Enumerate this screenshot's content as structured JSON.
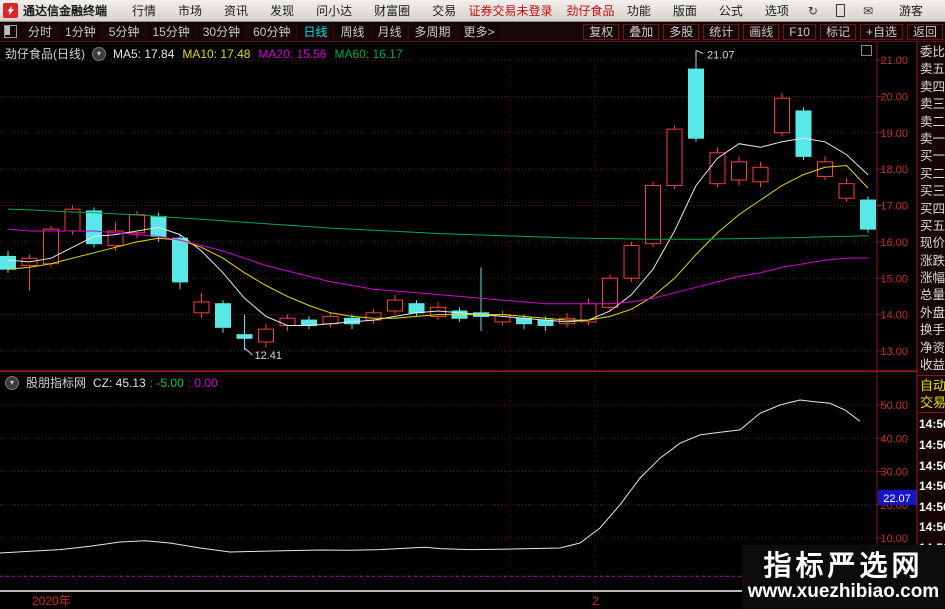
{
  "menubar": {
    "app_title": "通达信金融终端",
    "items": [
      "行情",
      "市场",
      "资讯",
      "发现",
      "问小达",
      "财富圈",
      "交易"
    ],
    "login_status": "证券交易未登录",
    "stock_name": "劲仔食品",
    "right_items": [
      "功能",
      "版面",
      "公式",
      "选项"
    ],
    "icons": [
      "refresh-icon",
      "mobile-icon",
      "mail-icon"
    ],
    "user": "游客"
  },
  "toolbar": {
    "periods": [
      "分时",
      "1分钟",
      "5分钟",
      "15分钟",
      "30分钟",
      "60分钟",
      "日线",
      "周线",
      "月线",
      "多周期",
      "更多>"
    ],
    "active_period": "日线",
    "buttons": [
      "复权",
      "叠加",
      "多股",
      "统计",
      "画线",
      "F10",
      "标记",
      "+自选",
      "返回"
    ]
  },
  "main_chart": {
    "title": "劲仔食品(日线)",
    "ma_labels": [
      {
        "label": "MA5: 17.84",
        "color": "#e8e8e8"
      },
      {
        "label": "MA10: 17.48",
        "color": "#dede00"
      },
      {
        "label": "MA20: 15.56",
        "color": "#d800d8"
      },
      {
        "label": "MA60: 16.17",
        "color": "#00a850"
      }
    ]
  },
  "quote_panel": {
    "rows": [
      "委比",
      "卖五",
      "卖四",
      "卖三",
      "卖二",
      "卖一",
      "买一",
      "买二",
      "买三",
      "买四",
      "买五",
      "现价",
      "涨跌",
      "涨幅",
      "总量",
      "外盘",
      "换手",
      "净资",
      "收益"
    ],
    "auto_trade": [
      "自动",
      "交易"
    ],
    "times": [
      "14:56",
      "14:56",
      "14:56",
      "14:56",
      "14:56",
      "14:56",
      "14:56"
    ]
  },
  "indicator": {
    "name": "股朋指标网",
    "values": [
      {
        "text": "CZ: 45.13",
        "color": "#e0e0e0"
      },
      {
        "text": ": -5.00",
        "color": "#00c850"
      },
      {
        "text": ": 0.00",
        "color": "#d800d8"
      }
    ],
    "marker": "22.07",
    "marker_color": "#1414c8"
  },
  "bottom_axis": {
    "year": "2020年",
    "month": "2"
  },
  "watermark": {
    "line1": "指标严选网",
    "line2": "www.xuezhibiao.com"
  },
  "colors": {
    "up": "#ff3c3c",
    "down": "#58e8e8",
    "grid": "#6e1414",
    "scale_text": "#c83232",
    "divider": "#9e1e1e",
    "baseline": "#cc00cc"
  },
  "chart_data": [
    {
      "type": "candlestick",
      "title": "劲仔食品(日线)",
      "ylim": [
        12.4,
        21.3
      ],
      "yticks": [
        13,
        14,
        15,
        16,
        17,
        18,
        19,
        20,
        21
      ],
      "candles": [
        [
          "d",
          15.75,
          15.6,
          15.25,
          15.15
        ],
        [
          "u",
          15.65,
          15.55,
          15.35,
          14.65
        ],
        [
          "u",
          16.45,
          16.35,
          15.4,
          15.3
        ],
        [
          "u",
          17.0,
          16.9,
          16.3,
          16.2
        ],
        [
          "d",
          16.95,
          16.85,
          15.95,
          15.85
        ],
        [
          "u",
          16.55,
          16.3,
          15.9,
          15.75
        ],
        [
          "u",
          16.85,
          16.75,
          16.25,
          16.1
        ],
        [
          "d",
          16.8,
          16.7,
          16.15,
          16.0
        ],
        [
          "d",
          16.2,
          16.1,
          14.9,
          14.7
        ],
        [
          "u",
          14.6,
          14.35,
          14.05,
          13.9
        ],
        [
          "d",
          14.4,
          14.3,
          13.65,
          13.5
        ],
        [
          "d",
          14.0,
          13.45,
          13.35,
          12.41
        ],
        [
          "u",
          13.75,
          13.6,
          13.25,
          13.1
        ],
        [
          "u",
          14.0,
          13.9,
          13.7,
          13.55
        ],
        [
          "d",
          13.95,
          13.85,
          13.7,
          13.6
        ],
        [
          "u",
          14.05,
          13.95,
          13.75,
          13.65
        ],
        [
          "d",
          14.0,
          13.9,
          13.75,
          13.6
        ],
        [
          "u",
          14.15,
          14.05,
          13.85,
          13.75
        ],
        [
          "u",
          14.55,
          14.4,
          14.1,
          14.0
        ],
        [
          "d",
          14.4,
          14.3,
          14.05,
          13.95
        ],
        [
          "u",
          14.35,
          14.2,
          13.95,
          13.85
        ],
        [
          "d",
          14.2,
          14.1,
          13.9,
          13.8
        ],
        [
          "d",
          15.3,
          14.05,
          13.95,
          13.55
        ],
        [
          "u",
          14.1,
          14.0,
          13.8,
          13.7
        ],
        [
          "d",
          14.0,
          13.9,
          13.75,
          13.6
        ],
        [
          "d",
          13.95,
          13.85,
          13.7,
          13.55
        ],
        [
          "u",
          14.05,
          13.9,
          13.75,
          13.65
        ],
        [
          "u",
          14.45,
          14.3,
          13.8,
          13.7
        ],
        [
          "u",
          15.1,
          15.0,
          14.2,
          14.1
        ],
        [
          "u",
          16.0,
          15.9,
          15.0,
          14.9
        ],
        [
          "u",
          17.65,
          17.55,
          15.95,
          15.85
        ],
        [
          "u",
          19.2,
          19.1,
          17.55,
          17.45
        ],
        [
          "d",
          21.07,
          20.75,
          18.85,
          18.75
        ],
        [
          "u",
          18.6,
          18.45,
          17.6,
          17.5
        ],
        [
          "u",
          18.35,
          18.2,
          17.7,
          17.55
        ],
        [
          "u",
          18.2,
          18.05,
          17.65,
          17.5
        ],
        [
          "u",
          20.1,
          19.95,
          19.0,
          18.9
        ],
        [
          "d",
          19.7,
          19.6,
          18.35,
          18.25
        ],
        [
          "u",
          18.35,
          18.2,
          17.8,
          17.7
        ],
        [
          "u",
          17.75,
          17.6,
          17.2,
          17.1
        ],
        [
          "d",
          17.25,
          17.15,
          16.35,
          16.25
        ]
      ],
      "annotations": [
        {
          "candle": 32,
          "pos": "high",
          "text": "21.07"
        },
        {
          "candle": 11,
          "pos": "low",
          "text": "12.41"
        }
      ],
      "ma_series": [
        {
          "name": "MA5",
          "color": "#e8e8e8",
          "values": [
            15.5,
            15.45,
            15.55,
            15.85,
            16.15,
            16.2,
            16.3,
            16.4,
            16.2,
            15.75,
            15.15,
            14.45,
            13.95,
            13.7,
            13.7,
            13.75,
            13.8,
            13.85,
            13.95,
            14.05,
            14.1,
            14.05,
            14.0,
            13.95,
            13.9,
            13.85,
            13.8,
            13.85,
            14.1,
            14.55,
            15.25,
            16.3,
            17.55,
            18.3,
            18.7,
            18.6,
            18.75,
            18.85,
            18.75,
            18.4,
            17.84
          ]
        },
        {
          "name": "MA10",
          "color": "#dede00",
          "values": [
            15.25,
            15.3,
            15.4,
            15.55,
            15.7,
            15.85,
            16.0,
            16.1,
            16.05,
            15.85,
            15.55,
            15.15,
            14.8,
            14.5,
            14.25,
            14.05,
            13.95,
            13.9,
            13.9,
            13.95,
            14.0,
            14.0,
            14.0,
            14.0,
            13.95,
            13.9,
            13.85,
            13.85,
            13.95,
            14.15,
            14.5,
            15.0,
            15.65,
            16.25,
            16.75,
            17.15,
            17.55,
            17.85,
            18.05,
            18.1,
            17.48
          ]
        },
        {
          "name": "MA20",
          "color": "#d800d8",
          "values": [
            16.35,
            16.3,
            16.3,
            16.3,
            16.3,
            16.25,
            16.2,
            16.15,
            16.05,
            15.9,
            15.75,
            15.55,
            15.35,
            15.2,
            15.05,
            14.9,
            14.8,
            14.7,
            14.65,
            14.6,
            14.55,
            14.5,
            14.45,
            14.4,
            14.35,
            14.3,
            14.3,
            14.3,
            14.3,
            14.35,
            14.45,
            14.6,
            14.75,
            14.9,
            15.05,
            15.15,
            15.3,
            15.4,
            15.5,
            15.55,
            15.56
          ]
        },
        {
          "name": "MA60",
          "color": "#00a850",
          "values": [
            16.9,
            16.88,
            16.85,
            16.82,
            16.8,
            16.77,
            16.74,
            16.7,
            16.66,
            16.62,
            16.58,
            16.54,
            16.5,
            16.46,
            16.42,
            16.38,
            16.35,
            16.32,
            16.29,
            16.26,
            16.23,
            16.21,
            16.19,
            16.17,
            16.15,
            16.13,
            16.11,
            16.1,
            16.09,
            16.08,
            16.07,
            16.07,
            16.07,
            16.08,
            16.09,
            16.1,
            16.11,
            16.12,
            16.14,
            16.15,
            16.17
          ]
        }
      ]
    },
    {
      "type": "line",
      "name": "CZ",
      "color": "#e8e8e8",
      "yticks": [
        10,
        20,
        30,
        40,
        50
      ],
      "points": [
        [
          0,
          5.5
        ],
        [
          30,
          6
        ],
        [
          60,
          6.5
        ],
        [
          90,
          7.5
        ],
        [
          120,
          8.8
        ],
        [
          145,
          9.2
        ],
        [
          170,
          8.5
        ],
        [
          200,
          7
        ],
        [
          230,
          5.8
        ],
        [
          260,
          6
        ],
        [
          290,
          6.2
        ],
        [
          320,
          6.4
        ],
        [
          350,
          6.3
        ],
        [
          380,
          6.5
        ],
        [
          410,
          7
        ],
        [
          425,
          7.2
        ],
        [
          440,
          6.8
        ],
        [
          470,
          6.5
        ],
        [
          500,
          6.6
        ],
        [
          530,
          6.8
        ],
        [
          560,
          7
        ],
        [
          580,
          8.5
        ],
        [
          600,
          13
        ],
        [
          620,
          20
        ],
        [
          640,
          28
        ],
        [
          660,
          34
        ],
        [
          680,
          38.5
        ],
        [
          700,
          41
        ],
        [
          720,
          41.8
        ],
        [
          740,
          42.5
        ],
        [
          760,
          47.5
        ],
        [
          780,
          50
        ],
        [
          800,
          51.5
        ],
        [
          815,
          51
        ],
        [
          830,
          50.5
        ],
        [
          845,
          48.5
        ],
        [
          860,
          45.13
        ]
      ],
      "last_value": 45.13,
      "marker_value": 22.07,
      "baseline": -1.5
    }
  ]
}
